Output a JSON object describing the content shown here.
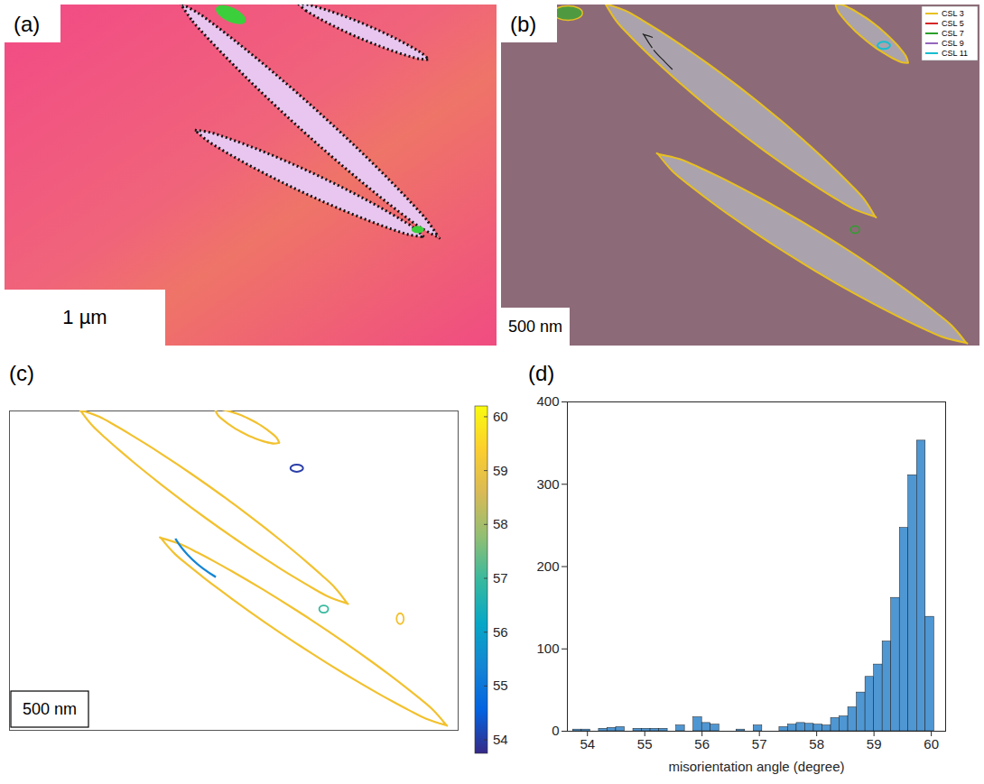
{
  "panels": [
    {
      "panel_label": "(a)",
      "scale_bar": "1 µm"
    },
    {
      "panel_label": "(b)",
      "scale_bar": "500 nm",
      "legend": "top-right",
      "series": [
        {
          "name": "CSL 3",
          "color": "#e8c020"
        },
        {
          "name": "CSL 5",
          "color": "#d62728"
        },
        {
          "name": "CSL 7",
          "color": "#2ca02c"
        },
        {
          "name": "CSL 9",
          "color": "#9467bd"
        },
        {
          "name": "CSL 11",
          "color": "#17becf"
        }
      ]
    },
    {
      "panel_label": "(c)",
      "scale_bar": "500 nm",
      "colorbar": {
        "range": [
          53.75,
          60.2
        ],
        "ticks": [
          54,
          55,
          56,
          57,
          58,
          59,
          60
        ]
      }
    }
  ],
  "chart_data": {
    "panel_label": "(d)",
    "type": "histogram",
    "xlabel": "misorientation angle (degree)",
    "bins": [
      53.75,
      53.9,
      54.05,
      54.2,
      54.35,
      54.5,
      54.65,
      54.8,
      54.95,
      55.1,
      55.25,
      55.4,
      55.55,
      55.7,
      55.85,
      56.0,
      56.15,
      56.3,
      56.45,
      56.6,
      56.75,
      56.9,
      57.05,
      57.2,
      57.35,
      57.5,
      57.65,
      57.8,
      57.95,
      58.1,
      58.25,
      58.4,
      58.55,
      58.7,
      58.85,
      59.0,
      59.15,
      59.3,
      59.45,
      59.6,
      59.75,
      59.9,
      60.05
    ],
    "counts": [
      2,
      2,
      0,
      3,
      4,
      5,
      0,
      3,
      3,
      3,
      3,
      0,
      7,
      0,
      17,
      10,
      8,
      0,
      0,
      2,
      0,
      7,
      0,
      0,
      5,
      8,
      10,
      9,
      8,
      7,
      16,
      18,
      29,
      47,
      66,
      81,
      109,
      162,
      247,
      311,
      353,
      139
    ],
    "color": "#4f97d3",
    "xlim": [
      53.65,
      60.25
    ],
    "xticks": [
      54,
      55,
      56,
      57,
      58,
      59,
      60
    ],
    "ylim": [
      0,
      400
    ],
    "yticks": [
      0,
      100,
      200,
      300,
      400
    ]
  }
}
